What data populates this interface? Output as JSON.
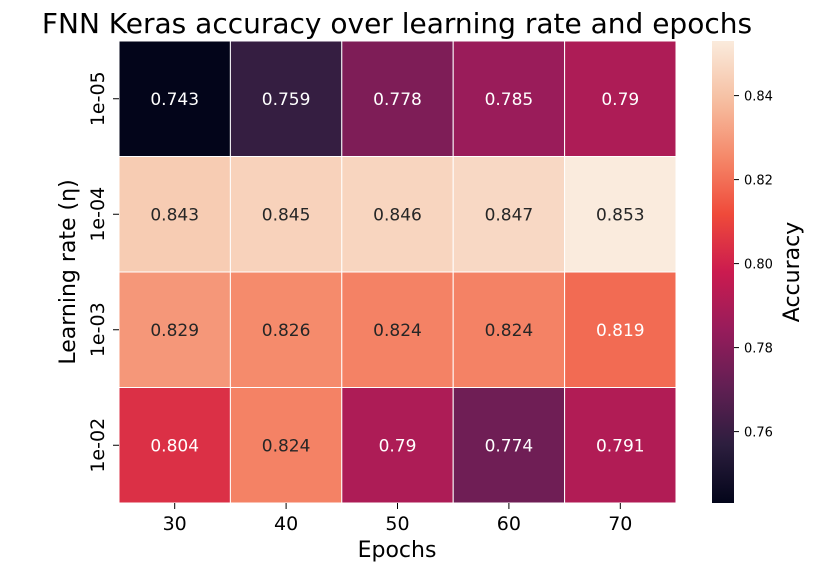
{
  "chart_data": {
    "type": "heatmap",
    "title": "FNN Keras accuracy over learning rate and epochs",
    "xlabel": "Epochs",
    "ylabel": "Learning rate (η)",
    "x_categories": [
      "30",
      "40",
      "50",
      "60",
      "70"
    ],
    "y_categories": [
      "1e-05",
      "1e-04",
      "1e-03",
      "1e-02"
    ],
    "values": [
      [
        0.743,
        0.759,
        0.778,
        0.785,
        0.79
      ],
      [
        0.843,
        0.845,
        0.846,
        0.847,
        0.853
      ],
      [
        0.829,
        0.826,
        0.824,
        0.824,
        0.819
      ],
      [
        0.804,
        0.824,
        0.79,
        0.774,
        0.791
      ]
    ],
    "value_labels": [
      [
        "0.743",
        "0.759",
        "0.778",
        "0.785",
        "0.79"
      ],
      [
        "0.843",
        "0.845",
        "0.846",
        "0.847",
        "0.853"
      ],
      [
        "0.829",
        "0.826",
        "0.824",
        "0.824",
        "0.819"
      ],
      [
        "0.804",
        "0.824",
        "0.79",
        "0.774",
        "0.791"
      ]
    ],
    "colorbar": {
      "label": "Accuracy",
      "min": 0.743,
      "max": 0.853,
      "ticks": [
        0.76,
        0.78,
        0.8,
        0.82,
        0.84
      ],
      "tick_labels": [
        "0.76",
        "0.78",
        "0.80",
        "0.82",
        "0.84"
      ],
      "colormap": "rocket"
    },
    "grid": false
  }
}
